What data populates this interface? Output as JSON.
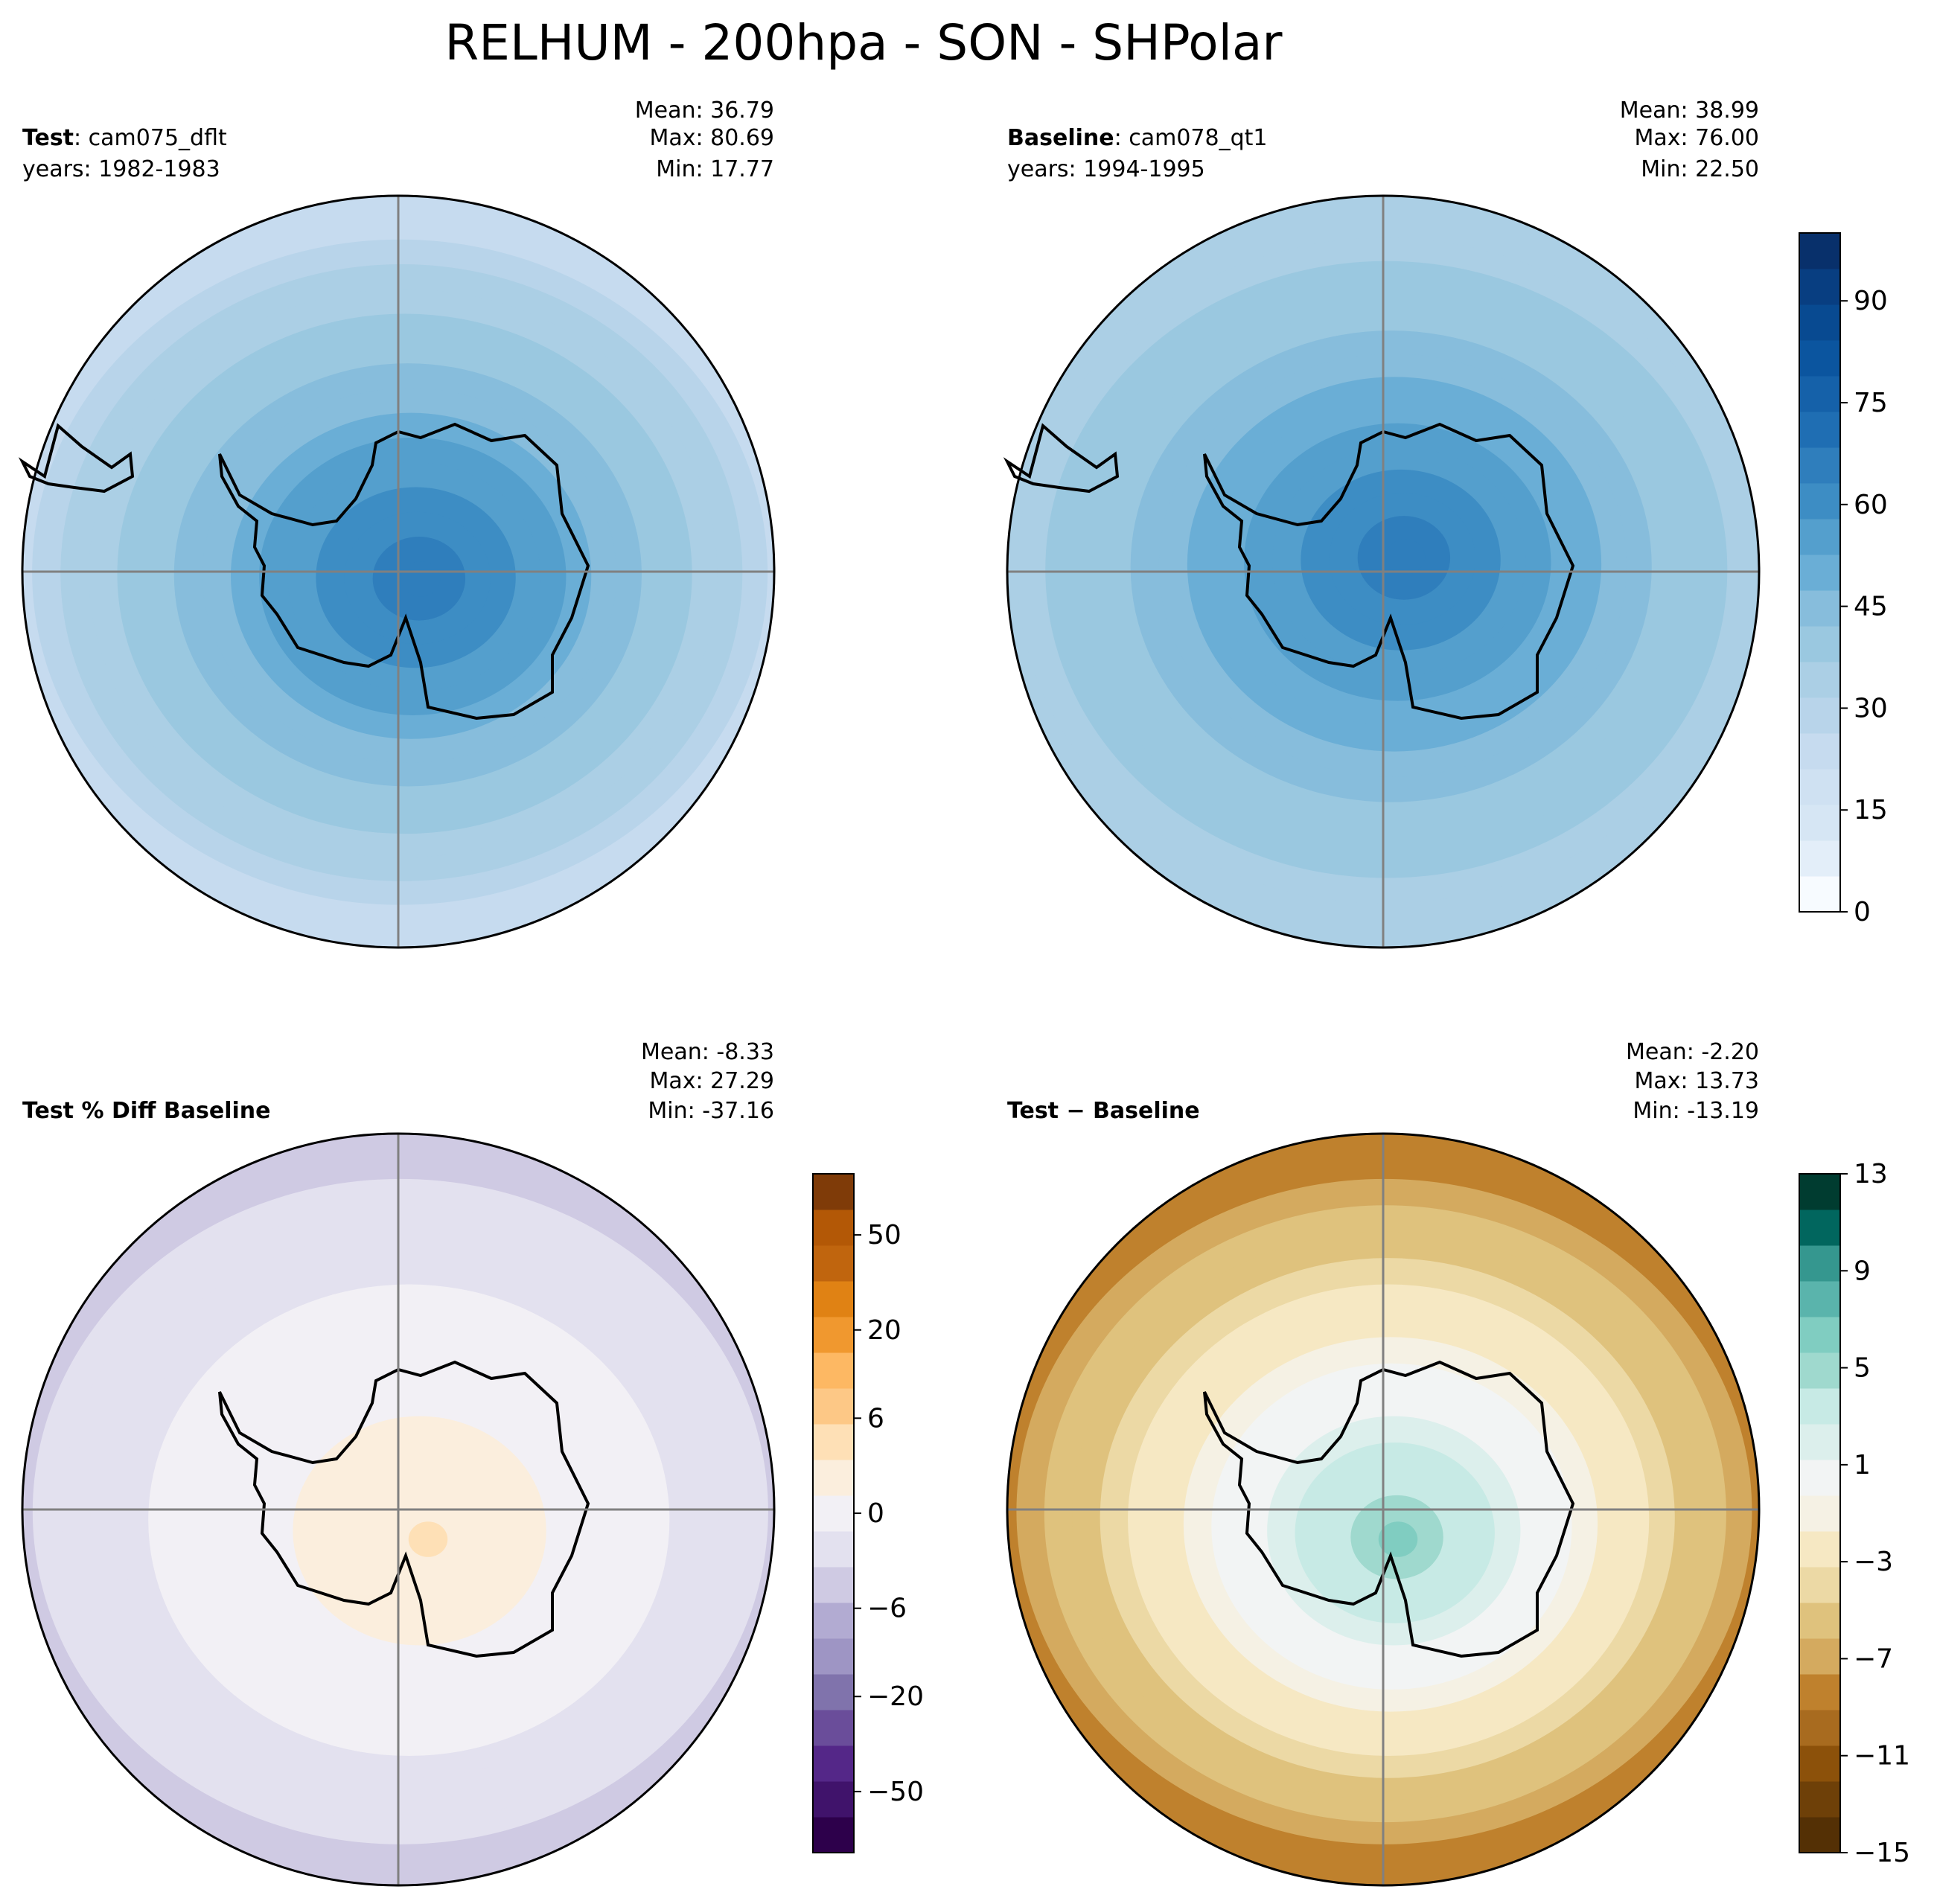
{
  "chart_data": {
    "type": "figure",
    "title": "RELHUM - 200hpa - SON - SHPolar",
    "panels": [
      {
        "id": "test",
        "type": "polar-contour-map",
        "label_bold": "Test",
        "label_rest": ": cam075_dflt",
        "years": "years: 1982-1983",
        "stats": [
          "Mean: 36.79",
          "Max: 80.69",
          "Min: 17.77"
        ],
        "palette": "blues",
        "center_value": 68,
        "rim_value": 26,
        "range": [
          0,
          100
        ]
      },
      {
        "id": "baseline",
        "type": "polar-contour-map",
        "label_bold": "Baseline",
        "label_rest": ": cam078_qt1",
        "years": "years: 1994-1995",
        "stats": [
          "Mean: 38.99",
          "Max: 76.00",
          "Min: 22.50"
        ],
        "palette": "blues",
        "center_value": 66,
        "rim_value": 32,
        "range": [
          0,
          100
        ]
      },
      {
        "id": "pctdiff",
        "type": "polar-contour-map",
        "label_bold": "Test % Diff Baseline",
        "label_rest": "",
        "years": "",
        "stats": [
          "Mean: -8.33",
          "Max: 27.29",
          "Min: -37.16"
        ],
        "palette": "purple-orange",
        "center_value": 18,
        "rim_value": -18,
        "range": [
          -100,
          100
        ]
      },
      {
        "id": "diff",
        "type": "polar-contour-map",
        "label_bold": "Test",
        "label_rest": " − Baseline",
        "years": "",
        "stats": [
          "Mean: -2.20",
          "Max: 13.73",
          "Min: -13.19"
        ],
        "palette": "brown-teal",
        "center_value": 6,
        "rim_value": -8,
        "range": [
          -15,
          13
        ]
      }
    ],
    "colorbars": [
      {
        "id": "cb-main",
        "palette": "blues",
        "range": [
          0,
          100
        ],
        "ticks": [
          {
            "value": 0,
            "label": "0"
          },
          {
            "value": 15,
            "label": "15"
          },
          {
            "value": 30,
            "label": "30"
          },
          {
            "value": 45,
            "label": "45"
          },
          {
            "value": 60,
            "label": "60"
          },
          {
            "value": 75,
            "label": "75"
          },
          {
            "value": 90,
            "label": "90"
          }
        ]
      },
      {
        "id": "cb-pct",
        "palette": "purple-orange",
        "range": [
          -100,
          100
        ],
        "ticks": [
          {
            "label": "−50"
          },
          {
            "label": "−20"
          },
          {
            "label": "−6"
          },
          {
            "label": "0"
          },
          {
            "label": "6"
          },
          {
            "label": "20"
          },
          {
            "label": "50"
          }
        ]
      },
      {
        "id": "cb-diff",
        "palette": "brown-teal",
        "range": [
          -15,
          13
        ],
        "ticks": [
          {
            "label": "−15"
          },
          {
            "label": "−11"
          },
          {
            "label": "−7"
          },
          {
            "label": "−3"
          },
          {
            "label": "1"
          },
          {
            "label": "5"
          },
          {
            "label": "9"
          },
          {
            "label": "13"
          }
        ]
      }
    ]
  },
  "colors": {
    "blues": [
      "#f7fbff",
      "#e3eef9",
      "#d6e6f4",
      "#cfe1f2",
      "#c6dbef",
      "#b8d4ea",
      "#abcfe5",
      "#9ac8e0",
      "#87bddc",
      "#6aaed6",
      "#549fcd",
      "#3d8dc4",
      "#2f7ebc",
      "#1f6eb3",
      "#1561a9",
      "#0b559f",
      "#084a91",
      "#083e81",
      "#08306b"
    ],
    "purple-orange": [
      "#2d004b",
      "#40136b",
      "#542788",
      "#6a4d9a",
      "#8073ac",
      "#9e95c4",
      "#b2abd2",
      "#cfcae3",
      "#e3e1ef",
      "#f2f0f5",
      "#fbeedd",
      "#fee0b6",
      "#fdc886",
      "#fdb863",
      "#f0982f",
      "#e08214",
      "#c0650e",
      "#b35806",
      "#7f3b08"
    ],
    "brown-teal": [
      "#543005",
      "#6e4008",
      "#8c510a",
      "#a86b1f",
      "#bf812d",
      "#d4aa5f",
      "#dfc27d",
      "#ecd9a5",
      "#f6e8c3",
      "#f5f1e4",
      "#f2f4f4",
      "#dcefec",
      "#c7eae5",
      "#9fd9ce",
      "#80cdc1",
      "#5ab4ac",
      "#35978f",
      "#01665e",
      "#003c30"
    ],
    "coastline": "#000000",
    "gridline": "#808080"
  }
}
